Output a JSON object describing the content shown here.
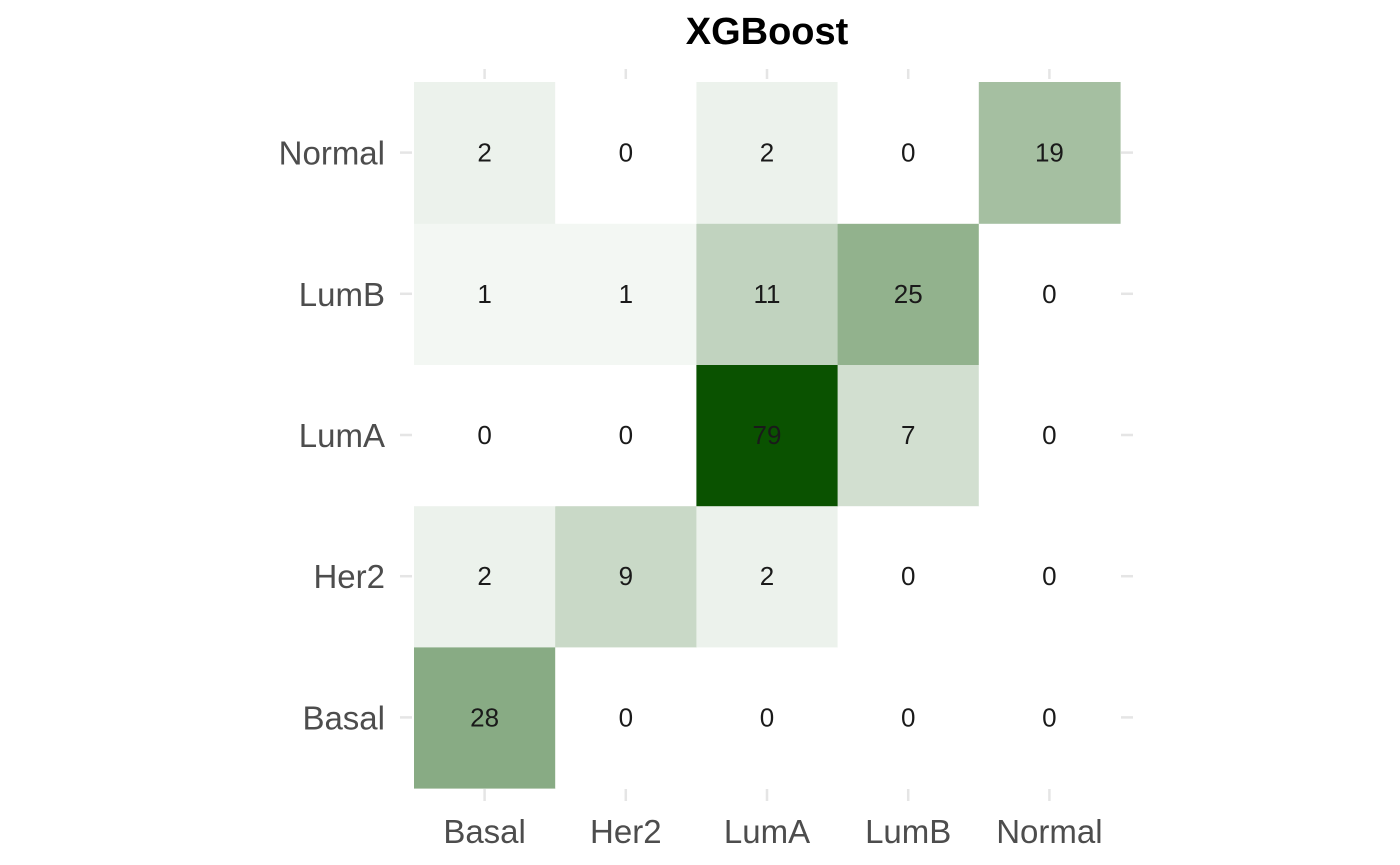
{
  "chart_data": {
    "type": "heatmap",
    "title": "XGBoost",
    "xlabel": "",
    "ylabel": "",
    "x_categories": [
      "Basal",
      "Her2",
      "LumA",
      "LumB",
      "Normal"
    ],
    "y_categories": [
      "Basal",
      "Her2",
      "LumA",
      "LumB",
      "Normal"
    ],
    "values": [
      [
        28,
        0,
        0,
        0,
        0
      ],
      [
        2,
        9,
        2,
        0,
        0
      ],
      [
        0,
        0,
        79,
        7,
        0
      ],
      [
        1,
        1,
        11,
        25,
        0
      ],
      [
        2,
        0,
        2,
        0,
        19
      ]
    ],
    "color_low": "#ffffff",
    "color_high": "#0a5200",
    "grid": false,
    "legend": "none"
  }
}
